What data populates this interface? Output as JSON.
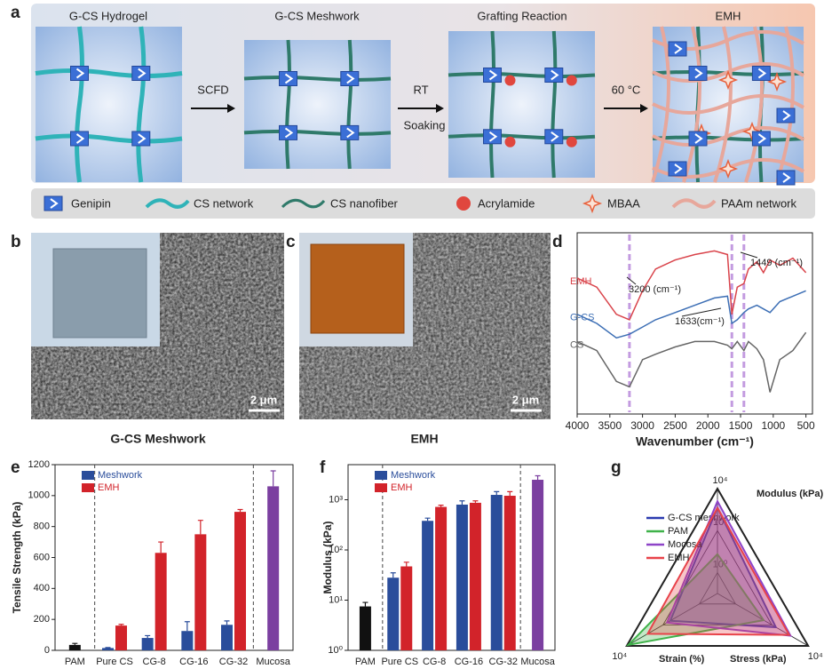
{
  "panel_labels": [
    "a",
    "b",
    "c",
    "d",
    "e",
    "f",
    "g"
  ],
  "schematic": {
    "steps": [
      "G-CS Hydrogel",
      "G-CS Meshwork",
      "Grafting Reaction",
      "EMH"
    ],
    "arrows": [
      {
        "label": "SCFD"
      },
      {
        "label": "RT",
        "sublabel": "Soaking"
      },
      {
        "label": "60 °C"
      }
    ],
    "legend": [
      "Genipin",
      "CS network",
      "CS nanofiber",
      "Acrylamide",
      "MBAA",
      "PAAm network"
    ]
  },
  "micrographs": [
    {
      "scale_bar": "2 μm",
      "caption": "G-CS Meshwork"
    },
    {
      "scale_bar": "2 μm",
      "caption": "EMH"
    }
  ],
  "chart_data": [
    {
      "type": "line",
      "xlabel": "Wavenumber (cm⁻¹)",
      "x": [
        4000,
        3700,
        3400,
        3200,
        3000,
        2800,
        2500,
        2200,
        1900,
        1700,
        1633,
        1550,
        1449,
        1380,
        1250,
        1150,
        1050,
        900,
        700,
        500
      ],
      "series": [
        {
          "name": "EMH",
          "color": "#d9434a",
          "values": [
            75,
            70,
            55,
            52,
            68,
            80,
            85,
            88,
            90,
            88,
            55,
            70,
            72,
            80,
            84,
            78,
            85,
            82,
            86,
            78
          ]
        },
        {
          "name": "G-CS",
          "color": "#3d6fb5",
          "values": [
            55,
            50,
            42,
            44,
            48,
            52,
            56,
            60,
            64,
            65,
            50,
            52,
            56,
            58,
            60,
            58,
            56,
            62,
            65,
            68
          ]
        },
        {
          "name": "CS",
          "color": "#666666",
          "values": [
            40,
            35,
            18,
            15,
            30,
            33,
            37,
            40,
            40,
            38,
            36,
            40,
            35,
            40,
            36,
            30,
            12,
            30,
            35,
            45
          ]
        }
      ],
      "xlim": [
        4000,
        400
      ],
      "xticks": [
        4000,
        3500,
        3000,
        2500,
        2000,
        1500,
        1000,
        500
      ],
      "ylim": [
        0,
        100
      ],
      "vlines": [
        3200,
        1633,
        1449
      ],
      "vline_color": "#c39be0",
      "annotations": [
        "3200 (cm⁻¹)",
        "1633(cm⁻¹)",
        "1449 (cm⁻¹)"
      ]
    },
    {
      "type": "bar",
      "ylabel": "Tensile Strength (kPa)",
      "categories": [
        "PAM",
        "Pure CS",
        "CG-8",
        "CG-16",
        "CG-32",
        "Mucosa"
      ],
      "series": [
        {
          "color": "#111111",
          "values": [
            35,
            null,
            null,
            null,
            null,
            null
          ],
          "errors": [
            10,
            null,
            null,
            null,
            null,
            null
          ]
        },
        {
          "name": "Meshwork",
          "color": "#2a4d9b",
          "values": [
            null,
            15,
            80,
            125,
            165,
            null
          ],
          "errors": [
            null,
            3,
            15,
            60,
            25,
            null
          ]
        },
        {
          "name": "EMH",
          "color": "#d2232a",
          "values": [
            null,
            160,
            630,
            750,
            895,
            null
          ],
          "errors": [
            null,
            8,
            70,
            90,
            15,
            null
          ]
        },
        {
          "color": "#7b3fa0",
          "values": [
            null,
            null,
            null,
            null,
            null,
            1060
          ],
          "errors": [
            null,
            null,
            null,
            null,
            null,
            100
          ]
        }
      ],
      "ylim": [
        0,
        1200
      ],
      "yticks": [
        0,
        200,
        400,
        600,
        800,
        1000,
        1200
      ],
      "legend": "upper left"
    },
    {
      "type": "bar",
      "ylabel": "Modulus (kPa)",
      "log_scale": true,
      "categories": [
        "PAM",
        "Pure CS",
        "CG-8",
        "CG-16",
        "CG-32",
        "Mucosa"
      ],
      "series": [
        {
          "color": "#111111",
          "values": [
            7.5,
            null,
            null,
            null,
            null,
            null
          ],
          "errors": [
            1.5,
            null,
            null,
            null,
            null,
            null
          ]
        },
        {
          "name": "Meshwork",
          "color": "#2a4d9b",
          "values": [
            null,
            28,
            380,
            800,
            1250,
            null
          ],
          "errors": [
            null,
            7,
            50,
            150,
            200,
            null
          ]
        },
        {
          "name": "EMH",
          "color": "#d2232a",
          "values": [
            null,
            47,
            720,
            870,
            1200,
            null
          ],
          "errors": [
            null,
            10,
            60,
            80,
            250,
            null
          ]
        },
        {
          "color": "#7b3fa0",
          "values": [
            null,
            null,
            null,
            null,
            null,
            2500
          ],
          "errors": [
            null,
            null,
            null,
            null,
            null,
            500
          ]
        }
      ],
      "ylim": [
        1,
        5000
      ],
      "yticks": [
        {
          "value": 1,
          "label": "10⁰"
        },
        {
          "value": 10,
          "label": "10¹"
        },
        {
          "value": 100,
          "label": "10²"
        },
        {
          "value": 1000,
          "label": "10³"
        }
      ],
      "legend": "upper left"
    },
    {
      "type": "radar",
      "log_scale": true,
      "axes": [
        "Modulus (kPa)",
        "Strain (%)",
        "Stress (kPa)"
      ],
      "rlim": [
        0.1,
        10000
      ],
      "rticks": [
        {
          "value": 1,
          "label": "10⁰"
        },
        {
          "value": 100,
          "label": "10²"
        },
        {
          "value": 10000,
          "label": "10⁴"
        }
      ],
      "series": [
        {
          "name": "G-CS meshwork",
          "color": "#2b3bb0",
          "values": [
            1250,
            40,
            165
          ]
        },
        {
          "name": "PAM",
          "color": "#3fb24a",
          "values": [
            7.5,
            8000,
            35
          ]
        },
        {
          "name": "Mocosa",
          "color": "#8e44c8",
          "values": [
            2500,
            60,
            1060
          ]
        },
        {
          "name": "EMH",
          "color": "#e8434a",
          "values": [
            1200,
            700,
            900
          ]
        }
      ],
      "legend": "upper left"
    }
  ]
}
